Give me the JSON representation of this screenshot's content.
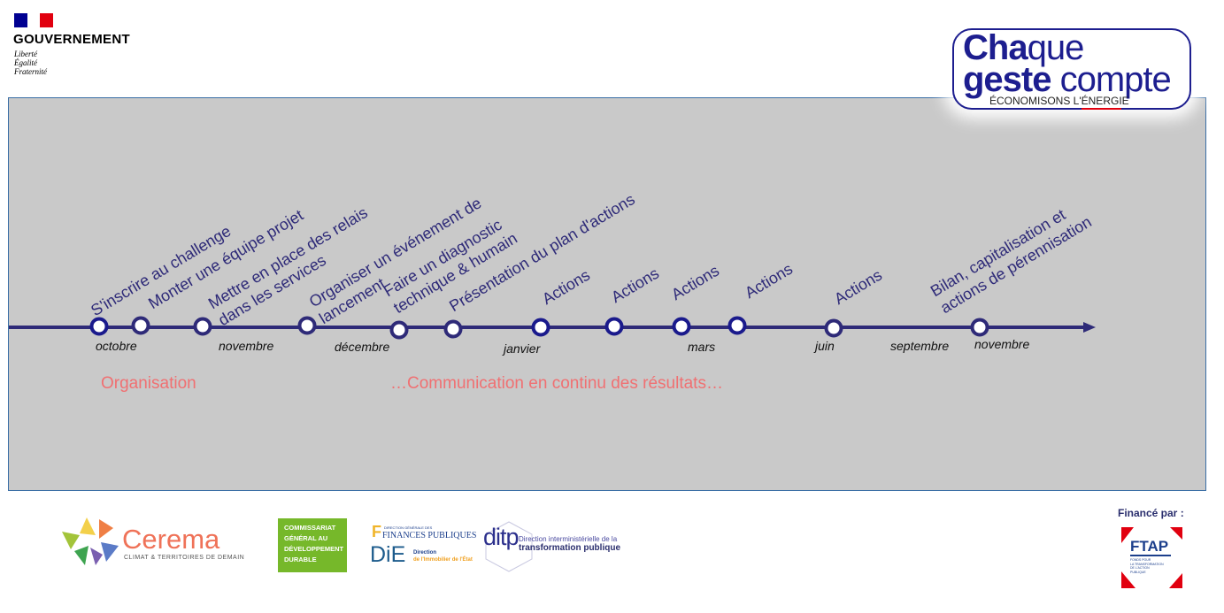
{
  "header": {
    "gov_title": "GOUVERNEMENT",
    "gov_motto": [
      "Liberté",
      "Égalité",
      "Fraternité"
    ],
    "campaign_logo": {
      "line1_bold": "Cha",
      "line1_light": "que",
      "line2_bold": "geste",
      "line2_light": " compte",
      "tagline": "ÉCONOMISONS L'ÉNERGIE"
    }
  },
  "colors": {
    "timeline": "#2e2a78",
    "node_border": "#1a1a8c",
    "phase_text": "#f07072",
    "panel_bg": "#c9c9c9"
  },
  "timeline": {
    "steps": [
      {
        "lines": [
          "S'inscrire au challenge"
        ]
      },
      {
        "lines": [
          "Monter une équipe projet"
        ]
      },
      {
        "lines": [
          "Mettre en place des relais",
          "dans les services"
        ]
      },
      {
        "lines": [
          "Organiser un événement de",
          "lancement"
        ]
      },
      {
        "lines": [
          "Faire un diagnostic",
          "technique & humain"
        ]
      },
      {
        "lines": [
          "Présentation du plan d'actions"
        ]
      },
      {
        "lines": [
          "Actions"
        ]
      },
      {
        "lines": [
          "Actions"
        ]
      },
      {
        "lines": [
          "Actions"
        ]
      },
      {
        "lines": [
          "Actions"
        ]
      },
      {
        "lines": [
          "Actions"
        ]
      },
      {
        "lines": [
          "Bilan, capitalisation et",
          "actions de pérennisation"
        ]
      }
    ],
    "months": [
      "octobre",
      "novembre",
      "décembre",
      "janvier",
      "mars",
      "juin",
      "septembre",
      "novembre"
    ],
    "phases": [
      "Organisation",
      "…Communication en continu des résultats…"
    ]
  },
  "footer": {
    "cerema": {
      "name": "Cerema",
      "tagline": "CLIMAT & TERRITOIRES DE DEMAIN"
    },
    "cgdd": [
      "COMMISSARIAT",
      "GÉNÉRAL AU",
      "DÉVELOPPEMENT",
      "DURABLE"
    ],
    "dgfip": {
      "small": "DIRECTION GÉNÉRALE DES",
      "name": "FINANCES PUBLIQUES"
    },
    "die": {
      "name": "DiE",
      "line1": "Direction",
      "line2": "de l'Immobilier de l'État"
    },
    "ditp": {
      "name": "ditp",
      "line1": "Direction interministérielle de la",
      "line2": "transformation publique"
    },
    "funded_by": "Financé par :",
    "ftap": {
      "name": "FTAP",
      "lines": [
        "FONDS POUR",
        "LA TRANSFORMATION",
        "DE L'ACTION",
        "PUBLIQUE"
      ]
    }
  }
}
